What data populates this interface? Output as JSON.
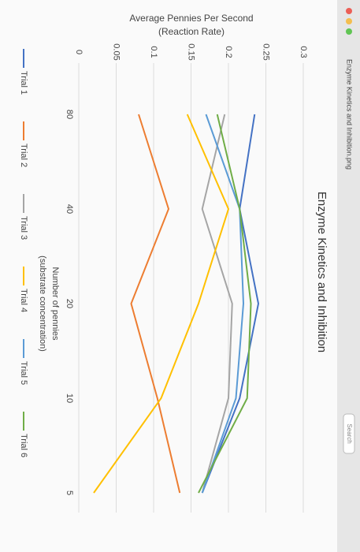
{
  "window_title": "Enzyme Kinetics and Inhibition.png",
  "search": "Search",
  "chart_data": {
    "type": "line",
    "title": "Enzyme Kinetics and Inhibition",
    "x_label": [
      "Number of pennies",
      "(substrate concentration)"
    ],
    "y_label": [
      "Average Pennies Per Second",
      "(Reaction Rate)"
    ],
    "categories": [
      "80",
      "40",
      "20",
      "10",
      "5"
    ],
    "ylim": [
      0,
      0.3
    ],
    "yticks": [
      0,
      0.05,
      0.1,
      0.15,
      0.2,
      0.25,
      0.3
    ],
    "grid": true,
    "legend": "bottom",
    "series": [
      {
        "name": "Trial 1",
        "color": "#4472c4",
        "values": [
          0.235,
          0.215,
          0.24,
          0.215,
          0.165
        ]
      },
      {
        "name": "Trial 2",
        "color": "#ed7d31",
        "values": [
          0.08,
          0.12,
          0.07,
          0.105,
          0.135
        ]
      },
      {
        "name": "Trial 3",
        "color": "#a5a5a5",
        "values": [
          0.195,
          0.165,
          0.205,
          0.2,
          0.165
        ]
      },
      {
        "name": "Trial 4",
        "color": "#ffc000",
        "values": [
          0.145,
          0.2,
          0.16,
          0.11,
          0.02
        ]
      },
      {
        "name": "Trial 5",
        "color": "#5b9bd5",
        "values": [
          0.17,
          0.215,
          0.22,
          0.21,
          0.165
        ]
      },
      {
        "name": "Trial 6",
        "color": "#70ad47",
        "values": [
          0.185,
          0.215,
          0.23,
          0.225,
          0.16
        ]
      }
    ]
  }
}
